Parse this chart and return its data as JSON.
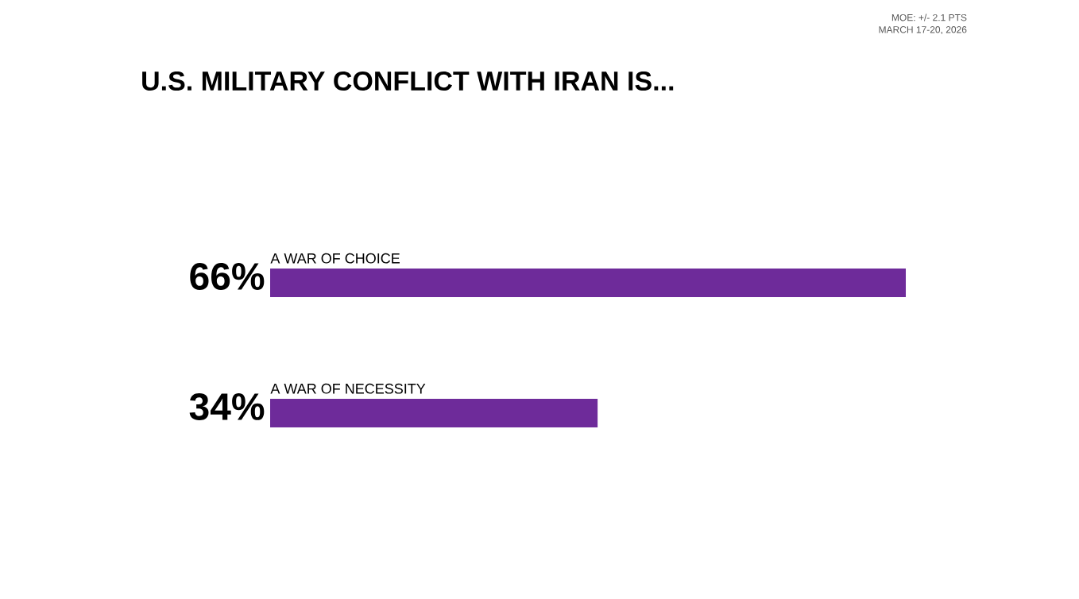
{
  "chart_data": {
    "type": "bar",
    "orientation": "horizontal",
    "title": "U.S. MILITARY CONFLICT WITH IRAN IS...",
    "annotations": [
      "MOE: +/- 2.1 PTS",
      "MARCH 17-20, 2026"
    ],
    "categories": [
      "A WAR OF CHOICE",
      "A WAR OF NECESSITY"
    ],
    "values": [
      66,
      34
    ],
    "value_labels": [
      "66%",
      "34%"
    ],
    "color": "#6e2b9a"
  }
}
